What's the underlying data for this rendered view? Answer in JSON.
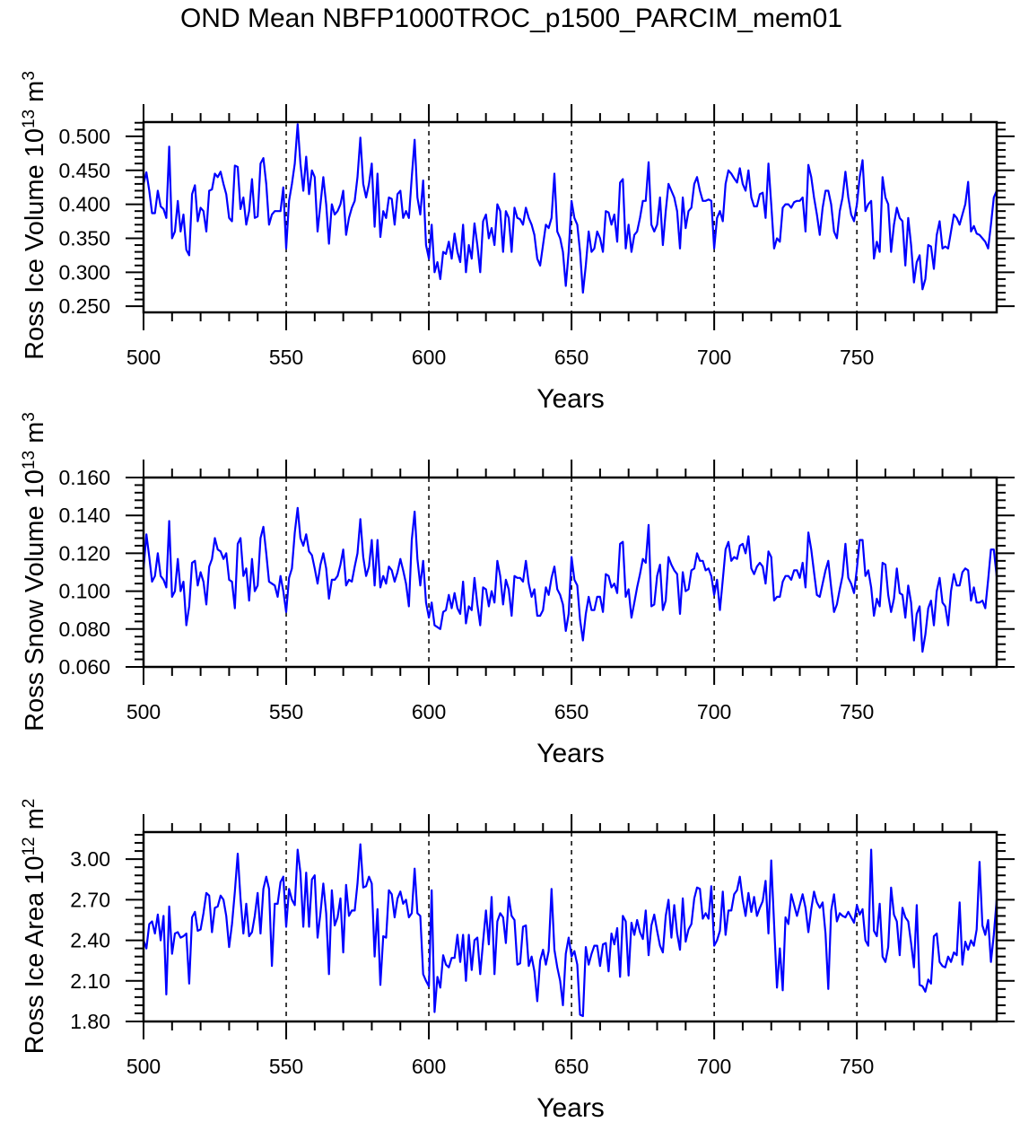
{
  "title": "OND Mean NBFP1000TROC_p1500_PARCIM_mem01",
  "line_color": "#0000ff",
  "chart_data": [
    {
      "type": "line",
      "title": "",
      "xlabel": "Years",
      "ylabel": "Ross Ice Volume 10^13 m^3",
      "xlim": [
        500,
        799
      ],
      "ylim": [
        0.241,
        0.521
      ],
      "x_start": 500,
      "x_ticks": [
        500,
        550,
        600,
        650,
        700,
        750
      ],
      "x_tick_labels": [
        "500",
        "550",
        "600",
        "650",
        "700",
        "750"
      ],
      "y_ticks": [
        0.25,
        0.3,
        0.35,
        0.4,
        0.45,
        0.5
      ],
      "y_tick_labels": [
        "0.250",
        "0.300",
        "0.350",
        "0.400",
        "0.450",
        "0.500"
      ],
      "reference_lines_x": [
        550,
        600,
        650,
        700,
        750
      ],
      "grid": false,
      "series": [
        {
          "name": "Ross Ice Volume",
          "values": [
            0.43,
            0.447,
            0.42,
            0.387,
            0.387,
            0.42,
            0.397,
            0.393,
            0.38,
            0.485,
            0.35,
            0.36,
            0.405,
            0.36,
            0.385,
            0.333,
            0.325,
            0.415,
            0.428,
            0.375,
            0.395,
            0.39,
            0.36,
            0.42,
            0.422,
            0.445,
            0.44,
            0.448,
            0.43,
            0.415,
            0.38,
            0.375,
            0.457,
            0.455,
            0.393,
            0.41,
            0.37,
            0.39,
            0.437,
            0.38,
            0.382,
            0.46,
            0.468,
            0.43,
            0.37,
            0.385,
            0.39,
            0.39,
            0.39,
            0.425,
            0.335,
            0.405,
            0.43,
            0.46,
            0.518,
            0.46,
            0.42,
            0.47,
            0.415,
            0.45,
            0.44,
            0.36,
            0.4,
            0.44,
            0.4,
            0.342,
            0.4,
            0.385,
            0.39,
            0.4,
            0.42,
            0.355,
            0.38,
            0.395,
            0.405,
            0.44,
            0.498,
            0.43,
            0.41,
            0.43,
            0.46,
            0.367,
            0.445,
            0.352,
            0.39,
            0.38,
            0.41,
            0.408,
            0.37,
            0.415,
            0.42,
            0.38,
            0.39,
            0.38,
            0.44,
            0.495,
            0.41,
            0.385,
            0.435,
            0.34,
            0.32,
            0.37,
            0.3,
            0.315,
            0.29,
            0.33,
            0.327,
            0.345,
            0.32,
            0.357,
            0.33,
            0.315,
            0.37,
            0.3,
            0.34,
            0.32,
            0.372,
            0.34,
            0.3,
            0.375,
            0.385,
            0.35,
            0.365,
            0.34,
            0.4,
            0.39,
            0.33,
            0.39,
            0.38,
            0.33,
            0.395,
            0.38,
            0.378,
            0.37,
            0.395,
            0.38,
            0.37,
            0.355,
            0.32,
            0.31,
            0.34,
            0.37,
            0.365,
            0.38,
            0.445,
            0.36,
            0.35,
            0.33,
            0.28,
            0.33,
            0.405,
            0.38,
            0.37,
            0.33,
            0.27,
            0.31,
            0.36,
            0.33,
            0.335,
            0.36,
            0.35,
            0.33,
            0.39,
            0.388,
            0.37,
            0.385,
            0.345,
            0.432,
            0.437,
            0.335,
            0.37,
            0.33,
            0.355,
            0.36,
            0.38,
            0.405,
            0.405,
            0.462,
            0.37,
            0.36,
            0.37,
            0.41,
            0.34,
            0.39,
            0.43,
            0.42,
            0.41,
            0.39,
            0.335,
            0.41,
            0.365,
            0.39,
            0.395,
            0.43,
            0.44,
            0.42,
            0.405,
            0.405,
            0.407,
            0.405,
            0.335,
            0.38,
            0.39,
            0.375,
            0.43,
            0.45,
            0.445,
            0.438,
            0.432,
            0.453,
            0.43,
            0.42,
            0.45,
            0.41,
            0.397,
            0.397,
            0.415,
            0.417,
            0.38,
            0.46,
            0.4,
            0.335,
            0.35,
            0.345,
            0.395,
            0.4,
            0.4,
            0.395,
            0.403,
            0.405,
            0.405,
            0.41,
            0.36,
            0.458,
            0.44,
            0.41,
            0.385,
            0.355,
            0.395,
            0.42,
            0.42,
            0.4,
            0.36,
            0.35,
            0.39,
            0.41,
            0.448,
            0.41,
            0.385,
            0.375,
            0.4,
            0.44,
            0.465,
            0.39,
            0.4,
            0.405,
            0.32,
            0.345,
            0.33,
            0.44,
            0.41,
            0.4,
            0.33,
            0.37,
            0.395,
            0.38,
            0.375,
            0.31,
            0.38,
            0.34,
            0.285,
            0.315,
            0.325,
            0.275,
            0.29,
            0.34,
            0.338,
            0.305,
            0.355,
            0.375,
            0.335,
            0.338,
            0.335,
            0.36,
            0.385,
            0.38,
            0.37,
            0.385,
            0.4,
            0.433,
            0.36,
            0.368,
            0.357,
            0.355,
            0.35,
            0.345,
            0.335,
            0.37,
            0.41,
            0.42
          ]
        }
      ]
    },
    {
      "type": "line",
      "title": "",
      "xlabel": "Years",
      "ylabel": "Ross Snow Volume 10^13 m^3",
      "xlim": [
        500,
        799
      ],
      "ylim": [
        0.06,
        0.16
      ],
      "x_start": 500,
      "x_ticks": [
        500,
        550,
        600,
        650,
        700,
        750
      ],
      "x_tick_labels": [
        "500",
        "550",
        "600",
        "650",
        "700",
        "750"
      ],
      "y_ticks": [
        0.06,
        0.08,
        0.1,
        0.12,
        0.14,
        0.16
      ],
      "y_tick_labels": [
        "0.060",
        "0.080",
        "0.100",
        "0.120",
        "0.140",
        "0.160"
      ],
      "reference_lines_x": [
        550,
        600,
        650,
        700,
        750
      ],
      "grid": false,
      "series": [
        {
          "name": "Ross Snow Volume",
          "values": [
            0.112,
            0.13,
            0.118,
            0.105,
            0.108,
            0.12,
            0.108,
            0.106,
            0.102,
            0.137,
            0.097,
            0.1,
            0.117,
            0.1,
            0.105,
            0.082,
            0.092,
            0.115,
            0.116,
            0.103,
            0.11,
            0.105,
            0.093,
            0.113,
            0.117,
            0.128,
            0.122,
            0.121,
            0.117,
            0.12,
            0.106,
            0.105,
            0.091,
            0.125,
            0.128,
            0.108,
            0.112,
            0.095,
            0.117,
            0.1,
            0.103,
            0.128,
            0.134,
            0.12,
            0.105,
            0.104,
            0.103,
            0.097,
            0.108,
            0.1,
            0.089,
            0.107,
            0.112,
            0.131,
            0.144,
            0.128,
            0.124,
            0.13,
            0.121,
            0.119,
            0.112,
            0.104,
            0.114,
            0.12,
            0.112,
            0.096,
            0.106,
            0.106,
            0.108,
            0.114,
            0.122,
            0.103,
            0.106,
            0.105,
            0.113,
            0.12,
            0.138,
            0.118,
            0.108,
            0.113,
            0.127,
            0.103,
            0.127,
            0.102,
            0.108,
            0.104,
            0.113,
            0.111,
            0.105,
            0.11,
            0.117,
            0.111,
            0.104,
            0.092,
            0.127,
            0.142,
            0.117,
            0.103,
            0.116,
            0.094,
            0.086,
            0.094,
            0.082,
            0.081,
            0.08,
            0.089,
            0.09,
            0.098,
            0.091,
            0.099,
            0.091,
            0.088,
            0.105,
            0.083,
            0.092,
            0.09,
            0.107,
            0.093,
            0.082,
            0.102,
            0.101,
            0.092,
            0.1,
            0.094,
            0.116,
            0.108,
            0.093,
            0.106,
            0.101,
            0.087,
            0.108,
            0.107,
            0.107,
            0.105,
            0.116,
            0.104,
            0.097,
            0.101,
            0.087,
            0.087,
            0.09,
            0.102,
            0.098,
            0.107,
            0.113,
            0.101,
            0.098,
            0.093,
            0.079,
            0.088,
            0.118,
            0.106,
            0.103,
            0.085,
            0.074,
            0.088,
            0.097,
            0.09,
            0.09,
            0.097,
            0.097,
            0.089,
            0.109,
            0.108,
            0.102,
            0.104,
            0.099,
            0.125,
            0.126,
            0.097,
            0.101,
            0.086,
            0.094,
            0.102,
            0.109,
            0.117,
            0.115,
            0.135,
            0.092,
            0.093,
            0.108,
            0.114,
            0.09,
            0.095,
            0.118,
            0.114,
            0.111,
            0.109,
            0.088,
            0.11,
            0.1,
            0.101,
            0.111,
            0.112,
            0.12,
            0.116,
            0.116,
            0.111,
            0.112,
            0.108,
            0.098,
            0.106,
            0.09,
            0.106,
            0.122,
            0.126,
            0.116,
            0.118,
            0.117,
            0.124,
            0.125,
            0.12,
            0.129,
            0.112,
            0.109,
            0.113,
            0.115,
            0.113,
            0.104,
            0.121,
            0.118,
            0.095,
            0.097,
            0.097,
            0.105,
            0.108,
            0.108,
            0.106,
            0.111,
            0.111,
            0.107,
            0.115,
            0.102,
            0.131,
            0.122,
            0.11,
            0.098,
            0.097,
            0.104,
            0.111,
            0.116,
            0.102,
            0.089,
            0.093,
            0.101,
            0.108,
            0.125,
            0.107,
            0.104,
            0.099,
            0.112,
            0.127,
            0.127,
            0.108,
            0.111,
            0.102,
            0.087,
            0.096,
            0.092,
            0.115,
            0.114,
            0.098,
            0.089,
            0.096,
            0.112,
            0.099,
            0.098,
            0.086,
            0.103,
            0.094,
            0.074,
            0.088,
            0.092,
            0.068,
            0.077,
            0.091,
            0.095,
            0.082,
            0.1,
            0.107,
            0.094,
            0.092,
            0.082,
            0.1,
            0.109,
            0.103,
            0.103,
            0.11,
            0.112,
            0.111,
            0.095,
            0.102,
            0.094,
            0.094,
            0.095,
            0.091,
            0.106,
            0.122,
            0.122,
            0.108
          ]
        }
      ]
    },
    {
      "type": "line",
      "title": "",
      "xlabel": "Years",
      "ylabel": "Ross Ice Area 10^12 m^2",
      "xlim": [
        500,
        799
      ],
      "ylim": [
        1.8,
        3.2
      ],
      "x_start": 500,
      "x_ticks": [
        500,
        550,
        600,
        650,
        700,
        750
      ],
      "x_tick_labels": [
        "500",
        "550",
        "600",
        "650",
        "700",
        "750"
      ],
      "y_ticks": [
        1.8,
        2.1,
        2.4,
        2.7,
        3.0
      ],
      "y_tick_labels": [
        "1.80",
        "2.10",
        "2.40",
        "2.70",
        "3.00"
      ],
      "reference_lines_x": [
        550,
        600,
        650,
        700,
        750
      ],
      "grid": false,
      "series": [
        {
          "name": "Ross Ice Area",
          "values": [
            2.4,
            2.34,
            2.52,
            2.54,
            2.45,
            2.59,
            2.4,
            2.58,
            2.0,
            2.65,
            2.3,
            2.45,
            2.46,
            2.42,
            2.43,
            2.45,
            2.08,
            2.57,
            2.61,
            2.47,
            2.48,
            2.6,
            2.75,
            2.73,
            2.46,
            2.64,
            2.65,
            2.73,
            2.7,
            2.58,
            2.35,
            2.52,
            2.76,
            3.04,
            2.71,
            2.45,
            2.67,
            2.43,
            2.46,
            2.58,
            2.75,
            2.45,
            2.78,
            2.87,
            2.78,
            2.21,
            2.67,
            2.67,
            2.83,
            2.87,
            2.5,
            2.78,
            2.7,
            2.66,
            3.07,
            2.9,
            2.5,
            2.9,
            2.5,
            2.85,
            2.88,
            2.42,
            2.6,
            2.82,
            2.6,
            2.15,
            2.77,
            2.51,
            2.57,
            2.71,
            2.31,
            2.81,
            2.58,
            2.62,
            2.62,
            2.82,
            3.11,
            2.79,
            2.8,
            2.87,
            2.82,
            2.28,
            2.63,
            2.07,
            2.43,
            2.42,
            2.77,
            2.74,
            2.57,
            2.71,
            2.76,
            2.67,
            2.7,
            2.57,
            2.6,
            2.93,
            2.6,
            2.58,
            2.15,
            2.1,
            2.06,
            2.77,
            1.87,
            2.13,
            2.05,
            2.29,
            2.22,
            2.2,
            2.27,
            2.27,
            2.44,
            2.24,
            2.44,
            2.1,
            2.44,
            2.18,
            2.4,
            2.42,
            2.15,
            2.39,
            2.62,
            2.37,
            2.72,
            2.15,
            2.54,
            2.6,
            2.57,
            2.38,
            2.72,
            2.58,
            2.55,
            2.22,
            2.23,
            2.5,
            2.51,
            2.21,
            2.28,
            2.17,
            1.95,
            2.25,
            2.33,
            2.22,
            2.32,
            2.78,
            2.33,
            2.2,
            2.1,
            1.92,
            2.3,
            2.42,
            2.28,
            2.32,
            2.22,
            1.85,
            1.84,
            2.35,
            2.22,
            2.3,
            2.36,
            2.36,
            2.21,
            2.37,
            2.38,
            2.17,
            2.45,
            2.37,
            2.49,
            2.13,
            2.58,
            2.54,
            2.14,
            2.53,
            2.44,
            2.55,
            2.46,
            2.41,
            2.62,
            2.29,
            2.51,
            2.59,
            2.47,
            2.36,
            2.31,
            2.58,
            2.7,
            2.42,
            2.66,
            2.45,
            2.33,
            2.71,
            2.39,
            2.48,
            2.52,
            2.71,
            2.79,
            2.78,
            2.56,
            2.6,
            2.56,
            2.8,
            2.36,
            2.4,
            2.47,
            2.76,
            2.44,
            2.62,
            2.62,
            2.74,
            2.77,
            2.87,
            2.7,
            2.58,
            2.75,
            2.61,
            2.72,
            2.58,
            2.64,
            2.69,
            2.84,
            2.45,
            2.99,
            2.52,
            2.05,
            2.34,
            2.03,
            2.57,
            2.52,
            2.74,
            2.66,
            2.58,
            2.66,
            2.74,
            2.64,
            2.46,
            2.63,
            2.76,
            2.68,
            2.64,
            2.68,
            2.45,
            2.04,
            2.62,
            2.74,
            2.54,
            2.6,
            2.58,
            2.57,
            2.61,
            2.57,
            2.53,
            2.66,
            2.59,
            2.63,
            2.4,
            2.36,
            3.07,
            2.47,
            2.43,
            2.67,
            2.28,
            2.24,
            2.35,
            2.79,
            2.59,
            2.54,
            2.29,
            2.64,
            2.57,
            2.54,
            2.38,
            2.2,
            2.66,
            2.07,
            2.06,
            2.02,
            2.11,
            2.08,
            2.43,
            2.45,
            2.24,
            2.21,
            2.2,
            2.28,
            2.24,
            2.31,
            2.29,
            2.68,
            2.22,
            2.39,
            2.33,
            2.4,
            2.36,
            2.48,
            2.98,
            2.51,
            2.44,
            2.55,
            2.24,
            2.44,
            2.7
          ]
        }
      ]
    }
  ]
}
